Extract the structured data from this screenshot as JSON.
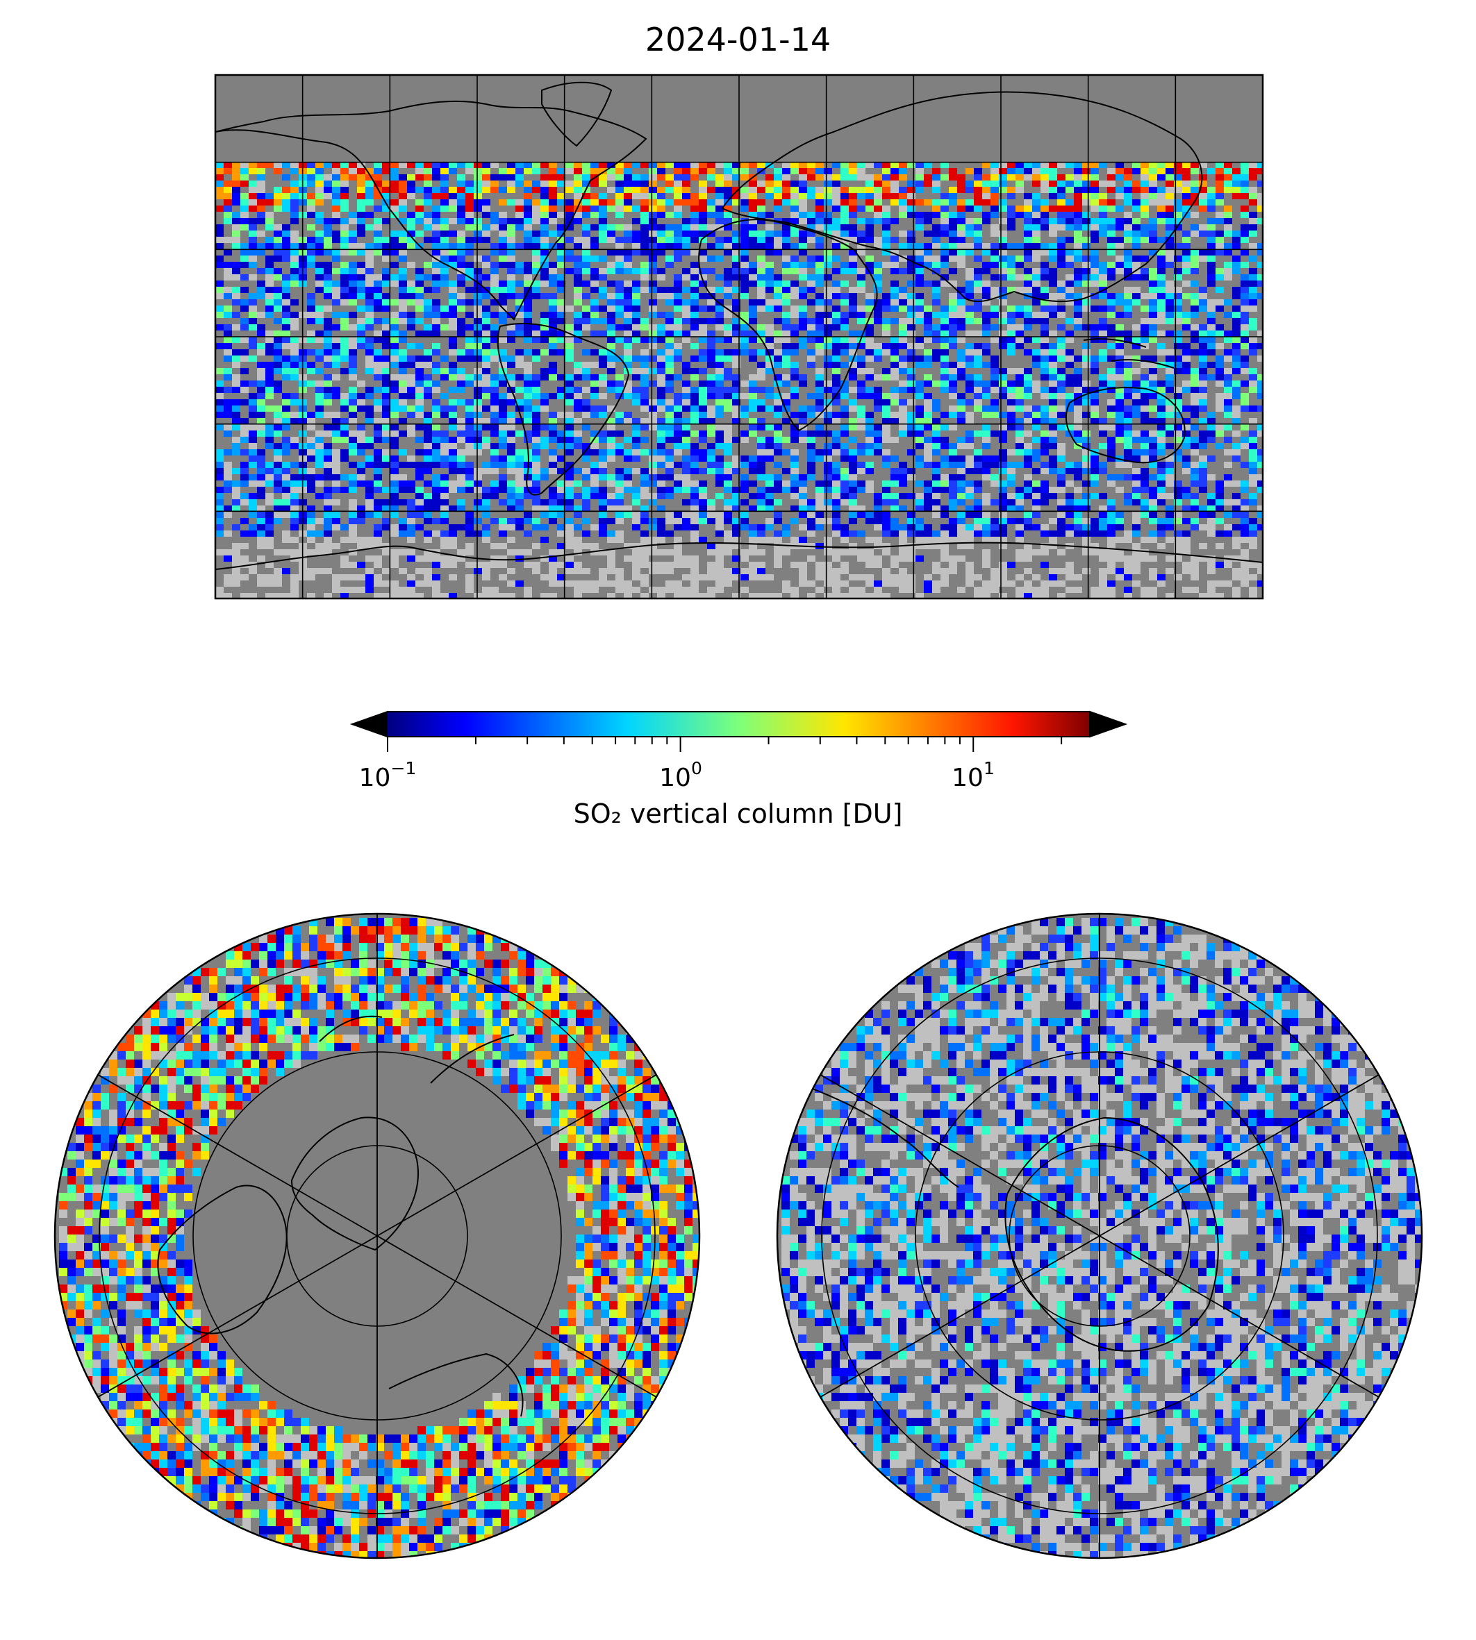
{
  "title": "2024-01-14",
  "colorbar": {
    "label": "SO₂ vertical column [DU]",
    "scale": "log",
    "range": [
      0.1,
      25
    ],
    "ticks": [
      {
        "base": "10",
        "exp": "−1",
        "value": 0.1
      },
      {
        "base": "10",
        "exp": "0",
        "value": 1
      },
      {
        "base": "10",
        "exp": "1",
        "value": 10
      }
    ],
    "extend": "both",
    "under_color": "#c8c8c8",
    "over_color": "#404040",
    "colormap": "jet"
  },
  "colors": {
    "no_data": "#808080",
    "below_detection": "#c0c0c0",
    "coastline": "#000000"
  },
  "panels": [
    {
      "name": "global-map",
      "projection": "equirectangular",
      "gridlines": "30° spacing"
    },
    {
      "name": "north-polar-map",
      "projection": "north polar stereographic"
    },
    {
      "name": "south-polar-map",
      "projection": "south polar stereographic"
    }
  ]
}
